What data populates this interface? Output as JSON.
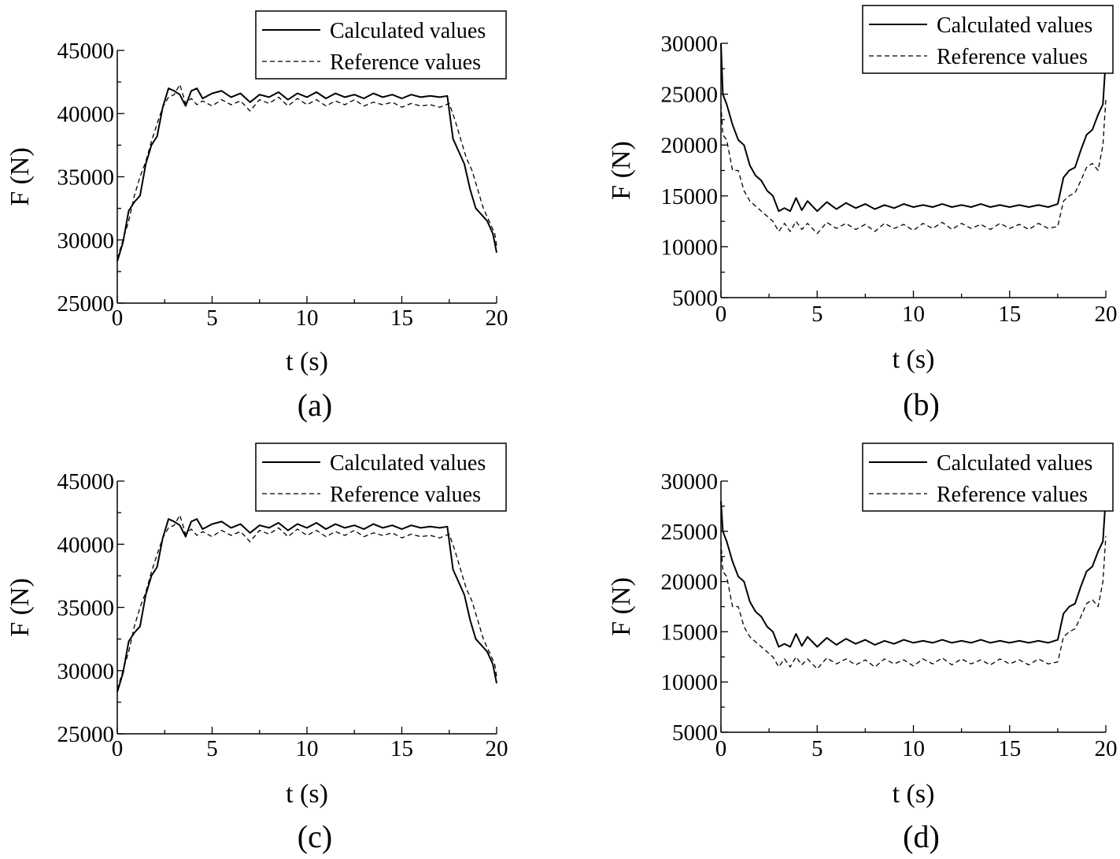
{
  "chart_data": [
    {
      "type": "line",
      "panel_label": "(a)",
      "xlabel": "t (s)",
      "ylabel": "F (N)",
      "xlim": [
        0,
        20
      ],
      "ylim": [
        25000,
        45000
      ],
      "xticks": [
        "0",
        "5",
        "10",
        "15",
        "20"
      ],
      "yticks": [
        "25000",
        "30000",
        "35000",
        "40000",
        "45000"
      ],
      "legend_position": "top-right",
      "series": [
        {
          "name": "Calculated values",
          "style": "solid",
          "x": [
            0,
            0.3,
            0.6,
            0.9,
            1.2,
            1.5,
            1.8,
            2.1,
            2.4,
            2.7,
            3.0,
            3.3,
            3.6,
            3.9,
            4.2,
            4.5,
            5.0,
            5.5,
            6.0,
            6.5,
            7.0,
            7.5,
            8.0,
            8.5,
            9.0,
            9.5,
            10.0,
            10.5,
            11.0,
            11.5,
            12.0,
            12.5,
            13.0,
            13.5,
            14.0,
            14.5,
            15.0,
            15.5,
            16.0,
            16.5,
            17.0,
            17.4,
            17.7,
            18.0,
            18.3,
            18.6,
            18.9,
            19.2,
            19.5,
            19.8,
            20.0
          ],
          "y": [
            28300,
            29800,
            32300,
            33000,
            33500,
            36000,
            37500,
            38200,
            40500,
            42000,
            41800,
            41500,
            40600,
            41800,
            42000,
            41200,
            41600,
            41800,
            41300,
            41600,
            40900,
            41500,
            41300,
            41700,
            41100,
            41600,
            41300,
            41700,
            41200,
            41600,
            41300,
            41500,
            41200,
            41600,
            41300,
            41500,
            41200,
            41500,
            41300,
            41400,
            41300,
            41400,
            38000,
            37000,
            36000,
            34000,
            32500,
            32000,
            31500,
            30500,
            29000
          ]
        },
        {
          "name": "Reference values",
          "style": "dashed",
          "x": [
            0,
            0.3,
            0.6,
            0.9,
            1.2,
            1.5,
            1.8,
            2.1,
            2.4,
            2.7,
            3.0,
            3.3,
            3.6,
            3.9,
            4.2,
            4.5,
            5.0,
            5.5,
            6.0,
            6.5,
            7.0,
            7.5,
            8.0,
            8.5,
            9.0,
            9.5,
            10.0,
            10.5,
            11.0,
            11.5,
            12.0,
            12.5,
            13.0,
            13.5,
            14.0,
            14.5,
            15.0,
            15.5,
            16.0,
            16.5,
            17.0,
            17.5,
            17.8,
            18.1,
            18.4,
            18.7,
            19.0,
            19.3,
            19.6,
            19.9,
            20.0
          ],
          "y": [
            28500,
            30000,
            31500,
            33500,
            35000,
            36200,
            37800,
            39200,
            40500,
            41300,
            41500,
            42300,
            40800,
            41200,
            40700,
            41000,
            40600,
            41100,
            40700,
            41000,
            40200,
            41100,
            40800,
            41300,
            40600,
            41200,
            40700,
            41100,
            40600,
            41000,
            40700,
            41100,
            40600,
            40900,
            40700,
            40900,
            40500,
            40800,
            40600,
            40700,
            40500,
            40800,
            39500,
            38000,
            36500,
            35500,
            34000,
            32500,
            31500,
            30500,
            29500
          ]
        }
      ]
    },
    {
      "type": "line",
      "panel_label": "(b)",
      "xlabel": "t (s)",
      "ylabel": "F (N)",
      "xlim": [
        0,
        20
      ],
      "ylim": [
        5000,
        30000
      ],
      "xticks": [
        "0",
        "5",
        "10",
        "15",
        "20"
      ],
      "yticks": [
        "5000",
        "10000",
        "15000",
        "20000",
        "25000",
        "30000"
      ],
      "legend_position": "top-right",
      "series": [
        {
          "name": "Calculated values",
          "style": "solid",
          "x": [
            0,
            0.1,
            0.3,
            0.6,
            0.9,
            1.2,
            1.5,
            1.8,
            2.1,
            2.4,
            2.7,
            3.0,
            3.3,
            3.6,
            3.9,
            4.2,
            4.5,
            5.0,
            5.5,
            6.0,
            6.5,
            7.0,
            7.5,
            8.0,
            8.5,
            9.0,
            9.5,
            10.0,
            10.5,
            11.0,
            11.5,
            12.0,
            12.5,
            13.0,
            13.5,
            14.0,
            14.5,
            15.0,
            15.5,
            16.0,
            16.5,
            17.0,
            17.5,
            17.8,
            18.1,
            18.4,
            18.7,
            19.0,
            19.3,
            19.6,
            19.85,
            20.0
          ],
          "y": [
            30000,
            25000,
            24000,
            22000,
            20500,
            20000,
            18000,
            17000,
            16500,
            15500,
            15000,
            13500,
            13800,
            13500,
            14800,
            13600,
            14500,
            13500,
            14400,
            13700,
            14300,
            13800,
            14200,
            13700,
            14100,
            13800,
            14200,
            13900,
            14100,
            13900,
            14200,
            13900,
            14100,
            13900,
            14200,
            13900,
            14100,
            13900,
            14100,
            13900,
            14100,
            13900,
            14200,
            16800,
            17500,
            17800,
            19500,
            21000,
            21500,
            23000,
            24000,
            28500
          ]
        },
        {
          "name": "Reference values",
          "style": "dashed",
          "x": [
            0,
            0.1,
            0.3,
            0.6,
            0.9,
            1.2,
            1.5,
            1.8,
            2.1,
            2.4,
            2.7,
            3.0,
            3.3,
            3.6,
            3.9,
            4.2,
            4.5,
            5.0,
            5.5,
            6.0,
            6.5,
            7.0,
            7.5,
            8.0,
            8.5,
            9.0,
            9.5,
            10.0,
            10.5,
            11.0,
            11.5,
            12.0,
            12.5,
            13.0,
            13.5,
            14.0,
            14.5,
            15.0,
            15.5,
            16.0,
            16.5,
            17.0,
            17.5,
            17.8,
            18.1,
            18.4,
            18.7,
            19.0,
            19.3,
            19.6,
            19.85,
            20.0
          ],
          "y": [
            24000,
            21000,
            20500,
            17500,
            17500,
            15500,
            14500,
            14000,
            13500,
            13000,
            12500,
            11500,
            12300,
            11500,
            12500,
            11700,
            12300,
            11300,
            12400,
            11800,
            12300,
            11700,
            12200,
            11500,
            12300,
            11800,
            12200,
            11600,
            12300,
            11800,
            12400,
            11700,
            12300,
            11800,
            12200,
            11700,
            12300,
            11800,
            12200,
            11700,
            12300,
            11800,
            12000,
            14500,
            15000,
            15300,
            16500,
            17800,
            18200,
            17500,
            20000,
            24500
          ]
        }
      ]
    },
    {
      "type": "line",
      "panel_label": "(c)",
      "xlabel": "t (s)",
      "ylabel": "F (N)",
      "xlim": [
        0,
        20
      ],
      "ylim": [
        25000,
        45000
      ],
      "xticks": [
        "0",
        "5",
        "10",
        "15",
        "20"
      ],
      "yticks": [
        "25000",
        "30000",
        "35000",
        "40000",
        "45000"
      ],
      "legend_position": "top-right",
      "series": [
        {
          "name": "Calculated values",
          "style": "solid",
          "x": [
            0,
            0.3,
            0.6,
            0.9,
            1.2,
            1.5,
            1.8,
            2.1,
            2.4,
            2.7,
            3.0,
            3.3,
            3.6,
            3.9,
            4.2,
            4.5,
            5.0,
            5.5,
            6.0,
            6.5,
            7.0,
            7.5,
            8.0,
            8.5,
            9.0,
            9.5,
            10.0,
            10.5,
            11.0,
            11.5,
            12.0,
            12.5,
            13.0,
            13.5,
            14.0,
            14.5,
            15.0,
            15.5,
            16.0,
            16.5,
            17.0,
            17.4,
            17.7,
            18.0,
            18.3,
            18.6,
            18.9,
            19.2,
            19.5,
            19.8,
            20.0
          ],
          "y": [
            28300,
            29800,
            32300,
            33000,
            33500,
            36000,
            37500,
            38200,
            40500,
            42000,
            41800,
            41500,
            40600,
            41800,
            42000,
            41200,
            41600,
            41800,
            41300,
            41600,
            40900,
            41500,
            41300,
            41700,
            41100,
            41600,
            41300,
            41700,
            41200,
            41600,
            41300,
            41500,
            41200,
            41600,
            41300,
            41500,
            41200,
            41500,
            41300,
            41400,
            41300,
            41400,
            38000,
            37000,
            36000,
            34000,
            32500,
            32000,
            31500,
            30500,
            29000
          ]
        },
        {
          "name": "Reference values",
          "style": "dashed",
          "x": [
            0,
            0.3,
            0.6,
            0.9,
            1.2,
            1.5,
            1.8,
            2.1,
            2.4,
            2.7,
            3.0,
            3.3,
            3.6,
            3.9,
            4.2,
            4.5,
            5.0,
            5.5,
            6.0,
            6.5,
            7.0,
            7.5,
            8.0,
            8.5,
            9.0,
            9.5,
            10.0,
            10.5,
            11.0,
            11.5,
            12.0,
            12.5,
            13.0,
            13.5,
            14.0,
            14.5,
            15.0,
            15.5,
            16.0,
            16.5,
            17.0,
            17.5,
            17.8,
            18.1,
            18.4,
            18.7,
            19.0,
            19.3,
            19.6,
            19.9,
            20.0
          ],
          "y": [
            28500,
            30000,
            31500,
            33500,
            35000,
            36200,
            37800,
            39200,
            40500,
            41300,
            41500,
            42300,
            40800,
            41200,
            40700,
            41000,
            40600,
            41100,
            40700,
            41000,
            40200,
            41100,
            40800,
            41300,
            40600,
            41200,
            40700,
            41100,
            40600,
            41000,
            40700,
            41100,
            40600,
            40900,
            40700,
            40900,
            40500,
            40800,
            40600,
            40700,
            40500,
            40800,
            39500,
            38000,
            36500,
            35500,
            34000,
            32500,
            31500,
            30500,
            29500
          ]
        }
      ]
    },
    {
      "type": "line",
      "panel_label": "(d)",
      "xlabel": "t (s)",
      "ylabel": "F (N)",
      "xlim": [
        0,
        20
      ],
      "ylim": [
        5000,
        30000
      ],
      "xticks": [
        "0",
        "5",
        "10",
        "15",
        "20"
      ],
      "yticks": [
        "5000",
        "10000",
        "15000",
        "20000",
        "25000",
        "30000"
      ],
      "legend_position": "top-right",
      "series": [
        {
          "name": "Calculated values",
          "style": "solid",
          "x": [
            0,
            0.1,
            0.3,
            0.6,
            0.9,
            1.2,
            1.5,
            1.8,
            2.1,
            2.4,
            2.7,
            3.0,
            3.3,
            3.6,
            3.9,
            4.2,
            4.5,
            5.0,
            5.5,
            6.0,
            6.5,
            7.0,
            7.5,
            8.0,
            8.5,
            9.0,
            9.5,
            10.0,
            10.5,
            11.0,
            11.5,
            12.0,
            12.5,
            13.0,
            13.5,
            14.0,
            14.5,
            15.0,
            15.5,
            16.0,
            16.5,
            17.0,
            17.5,
            17.8,
            18.1,
            18.4,
            18.7,
            19.0,
            19.3,
            19.6,
            19.85,
            20.0
          ],
          "y": [
            28000,
            25000,
            24000,
            22000,
            20500,
            20000,
            18000,
            17000,
            16500,
            15500,
            15000,
            13500,
            13800,
            13500,
            14800,
            13600,
            14500,
            13500,
            14400,
            13700,
            14300,
            13800,
            14200,
            13700,
            14100,
            13800,
            14200,
            13900,
            14100,
            13900,
            14200,
            13900,
            14100,
            13900,
            14200,
            13900,
            14100,
            13900,
            14100,
            13900,
            14100,
            13900,
            14200,
            16800,
            17500,
            17800,
            19500,
            21000,
            21500,
            23000,
            24000,
            28500
          ]
        },
        {
          "name": "Reference values",
          "style": "dashed",
          "x": [
            0,
            0.1,
            0.3,
            0.6,
            0.9,
            1.2,
            1.5,
            1.8,
            2.1,
            2.4,
            2.7,
            3.0,
            3.3,
            3.6,
            3.9,
            4.2,
            4.5,
            5.0,
            5.5,
            6.0,
            6.5,
            7.0,
            7.5,
            8.0,
            8.5,
            9.0,
            9.5,
            10.0,
            10.5,
            11.0,
            11.5,
            12.0,
            12.5,
            13.0,
            13.5,
            14.0,
            14.5,
            15.0,
            15.5,
            16.0,
            16.5,
            17.0,
            17.5,
            17.8,
            18.1,
            18.4,
            18.7,
            19.0,
            19.3,
            19.6,
            19.85,
            20.0
          ],
          "y": [
            24000,
            21000,
            20500,
            17500,
            17500,
            15500,
            14500,
            14000,
            13500,
            13000,
            12500,
            11500,
            12300,
            11500,
            12500,
            11700,
            12300,
            11300,
            12400,
            11800,
            12300,
            11700,
            12200,
            11500,
            12300,
            11800,
            12200,
            11600,
            12300,
            11800,
            12400,
            11700,
            12300,
            11800,
            12200,
            11700,
            12300,
            11800,
            12200,
            11700,
            12300,
            11800,
            12000,
            14500,
            15000,
            15300,
            16500,
            17800,
            18200,
            17500,
            20000,
            24500
          ]
        }
      ]
    }
  ]
}
